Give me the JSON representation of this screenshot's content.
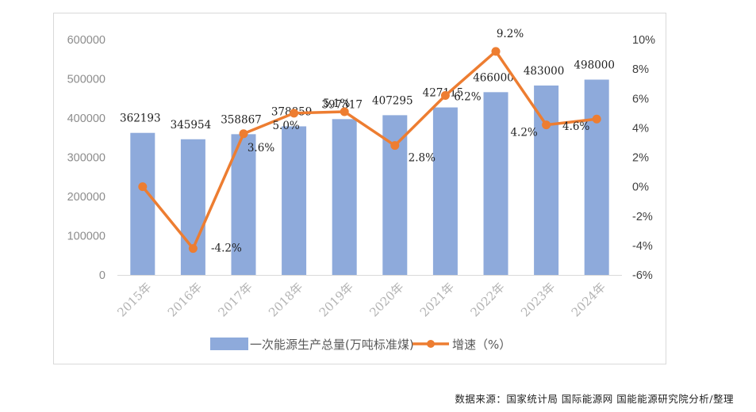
{
  "chart_data": {
    "type": "bar",
    "categories": [
      "2015年",
      "2016年",
      "2017年",
      "2018年",
      "2019年",
      "2020年",
      "2021年",
      "2022年",
      "2023年",
      "2024年"
    ],
    "series": [
      {
        "name": "一次能源生产总量(万吨标准煤)",
        "type": "bar",
        "axis": "left",
        "color": "#8eaadb",
        "values": [
          362193,
          345954,
          358867,
          378859,
          397317,
          407295,
          427115,
          466000,
          483000,
          498000
        ]
      },
      {
        "name": "增速（%）",
        "type": "line",
        "axis": "right",
        "color": "#ed7d31",
        "values": [
          0,
          -4.2,
          3.6,
          5.0,
          5.1,
          2.8,
          6.2,
          9.2,
          4.2,
          4.6
        ],
        "labels": [
          "",
          "-4.2%",
          "3.6%",
          "5.0%",
          "5.1%",
          "2.8%",
          "6.2%",
          "9.2%",
          "4.2%",
          "4.6%"
        ]
      }
    ],
    "y_left": {
      "min": 0,
      "max": 600000,
      "ticks": [
        "0",
        "100000",
        "200000",
        "300000",
        "400000",
        "500000",
        "600000"
      ]
    },
    "y_right": {
      "min": -6,
      "max": 10,
      "ticks": [
        "-6%",
        "-4%",
        "-2%",
        "0%",
        "2%",
        "4%",
        "6%",
        "8%",
        "10%"
      ]
    },
    "grid": false,
    "legend_position": "bottom"
  },
  "source_text": "数据来源：国家统计局 国际能源网 国能能源研究院分析/整理"
}
